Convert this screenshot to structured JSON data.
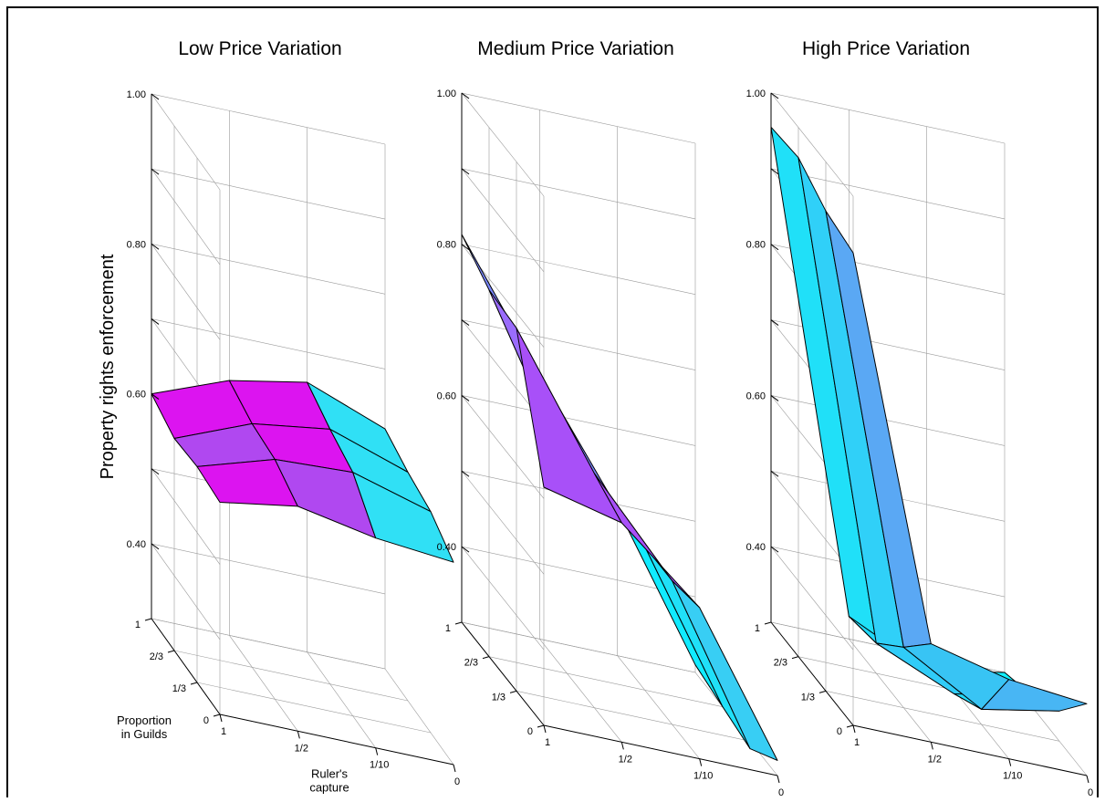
{
  "figure": {
    "ylabel": "Property rights enforcement"
  },
  "chart_data": [
    {
      "type": "surface",
      "title": "Low Price Variation",
      "zlabel": "Property rights enforcement",
      "zlim": [
        0.3,
        1.0
      ],
      "zticks": [
        "0.40",
        "0.60",
        "0.80",
        "1.00"
      ],
      "guild_axis": {
        "label": "Proportion\nin Guilds",
        "ticks": [
          "0",
          "1/3",
          "2/3",
          "1"
        ]
      },
      "capture_axis": {
        "label": "Ruler's\ncapture",
        "ticks": [
          "1",
          "1/2",
          "1/10",
          "0"
        ]
      },
      "z": [
        [
          0.6,
          0.64,
          0.66,
          0.62
        ],
        [
          0.583,
          0.625,
          0.64,
          0.605
        ],
        [
          0.588,
          0.62,
          0.625,
          0.595
        ],
        [
          0.583,
          0.6,
          0.58,
          0.57
        ]
      ],
      "colors": [
        [
          "#dc14f0",
          "#dc14f0",
          "#30e0f5"
        ],
        [
          "#b048f0",
          "#dc14f0",
          "#30e0f5"
        ],
        [
          "#dc14f0",
          "#b048f0",
          "#30e0f5"
        ]
      ]
    },
    {
      "type": "surface",
      "title": "Medium Price Variation",
      "zlabel": "Property rights enforcement",
      "zlim": [
        0.3,
        1.0
      ],
      "zticks": [
        "0.40",
        "0.60",
        "0.80",
        "1.00"
      ],
      "guild_axis": {
        "label": "",
        "ticks": [
          "0",
          "1/3",
          "2/3",
          "1"
        ]
      },
      "capture_axis": {
        "label": "",
        "ticks": [
          "1",
          "1/2",
          "1/10",
          "0"
        ]
      },
      "z": [
        [
          0.813,
          0.65,
          0.495,
          0.31
        ],
        [
          0.785,
          0.575,
          0.49,
          0.3
        ],
        [
          0.78,
          0.61,
          0.49,
          0.29
        ],
        [
          0.615,
          0.59,
          0.5,
          0.32
        ]
      ],
      "colors": [
        [
          "#7a88fc",
          "#7a88fc",
          "#10ebff"
        ],
        [
          "#9a6cfc",
          "#a850f8",
          "#20e0f8"
        ],
        [
          "#a850f8",
          "#a850f8",
          "#38cef4"
        ]
      ]
    },
    {
      "type": "surface",
      "title": "High Price Variation",
      "zlabel": "Property rights enforcement",
      "zlim": [
        0.3,
        1.0
      ],
      "zticks": [
        "0.40",
        "0.60",
        "0.80",
        "1.00"
      ],
      "guild_axis": {
        "label": "",
        "ticks": [
          "0",
          "1/3",
          "2/3",
          "1"
        ]
      },
      "capture_axis": {
        "label": "",
        "ticks": [
          "1",
          "1/2",
          "1/10",
          "0"
        ]
      },
      "z": [
        [
          0.955,
          0.33,
          0.28,
          0.3
        ],
        [
          0.96,
          0.34,
          0.295,
          0.315
        ],
        [
          0.935,
          0.38,
          0.32,
          0.34
        ],
        [
          0.925,
          0.43,
          0.405,
          0.395
        ]
      ],
      "colors": [
        [
          "#20e0f8",
          "#20d8f8",
          "#10f0ff"
        ],
        [
          "#30d0f8",
          "#30ccf8",
          "#24daf8"
        ],
        [
          "#5aa8f4",
          "#38c4f4",
          "#48b6f4"
        ]
      ]
    }
  ]
}
